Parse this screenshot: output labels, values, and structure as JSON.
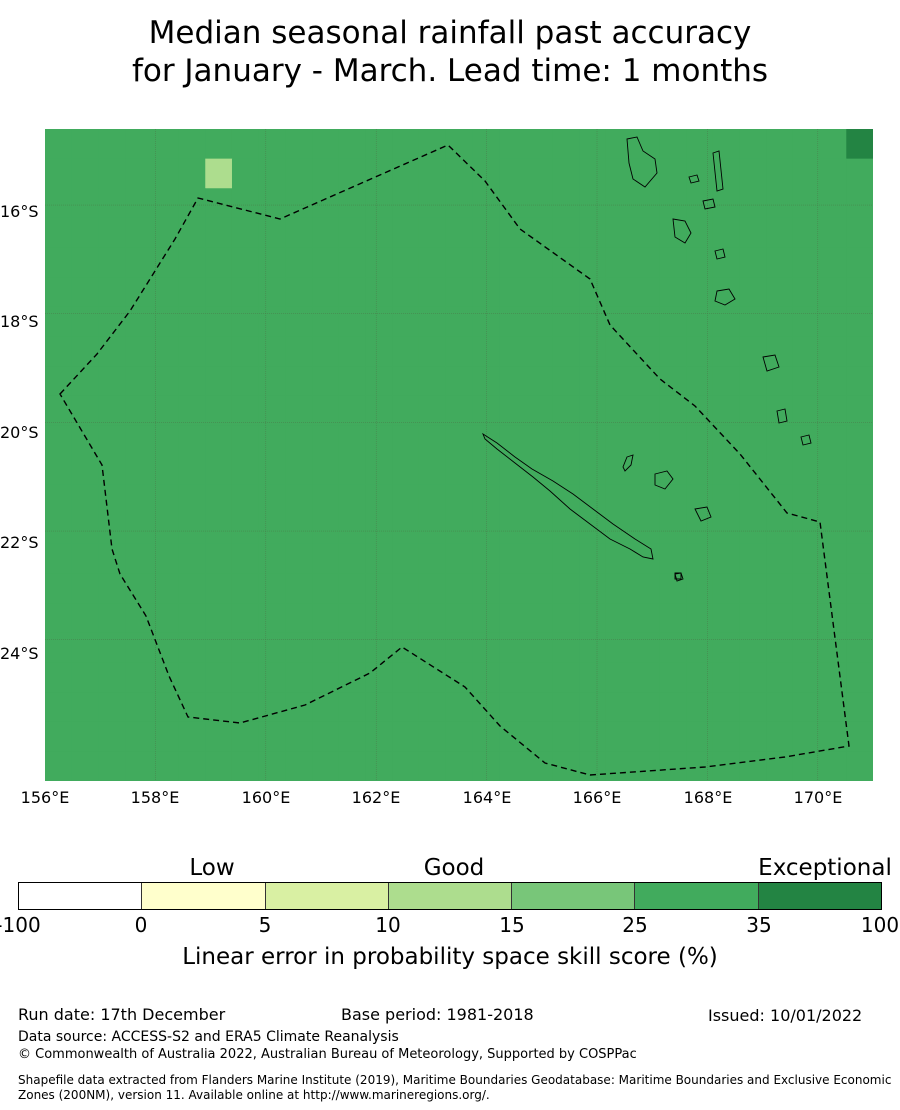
{
  "title": {
    "line1": "Median seasonal rainfall past accuracy",
    "line2": "for January - March. Lead time: 1 months"
  },
  "map": {
    "lat_labels": [
      "16°S",
      "18°S",
      "20°S",
      "22°S",
      "24°S"
    ],
    "lon_labels": [
      "156°E",
      "158°E",
      "160°E",
      "162°E",
      "164°E",
      "166°E",
      "168°E",
      "170°E"
    ],
    "lon_range": [
      156,
      171
    ],
    "lat_range": [
      -26.6,
      -14.6
    ],
    "colors": {
      "c0": "#ffffcc",
      "c1": "#d9f0a3",
      "c2": "#addd8e",
      "c3": "#78c679",
      "c4": "#41ab5d",
      "c5": "#238443"
    },
    "skill_grid": [
      "4444444444444444444444444444445",
      "4444442444444444444444444444444",
      "4444444444444444444444444444444",
      "4444444444444444444444444444444",
      "4444444444444444444444444444444",
      "4444444444444444444444444444444",
      "4444444444444444444444444444444",
      "4444444444444444444444444444444",
      "4444444444444444444444444444444",
      "4444444444444444444444444444444",
      "4444444444444444444444444444444",
      "4444444444444444444444444444444",
      "4444444444444444444444444444444",
      "4444444444444444444444444444444",
      "4444444444444444444444444444444",
      "4444444444444444444444444444444",
      "4444444444444444444444444444444",
      "4444444444444444444444444444444",
      "4444444444444444444444444444444",
      "4444444444444444444444444444444",
      "4444444444444444444444444444444",
      "4444444444444444444444444444444"
    ]
  },
  "colorbar": {
    "headings": [
      "Low",
      "Good",
      "Exceptional"
    ],
    "ticks": [
      "-100",
      "0",
      "5",
      "10",
      "15",
      "25",
      "35",
      "100"
    ],
    "colors": [
      "#ffffff",
      "#ffffcc",
      "#d9f0a3",
      "#addd8e",
      "#78c679",
      "#41ab5d",
      "#238443"
    ],
    "label": "Linear error in probability space skill score (%)"
  },
  "footer": {
    "run_date": "Run date: 17th December",
    "base_period": "Base period: 1981-2018",
    "issued": "Issued: 10/01/2022",
    "data_source": "Data source: ACCESS-S2 and ERA5 Climate Reanalysis",
    "copyright": "© Commonwealth of Australia 2022, Australian Bureau of Meteorology, Supported by COSPPac",
    "shapefile": "Shapefile data extracted from Flanders Marine Institute (2019), Maritime Boundaries Geodatabase: Maritime Boundaries and Exclusive Economic Zones (200NM), version 11. Available online at http://www.marineregions.org/."
  }
}
